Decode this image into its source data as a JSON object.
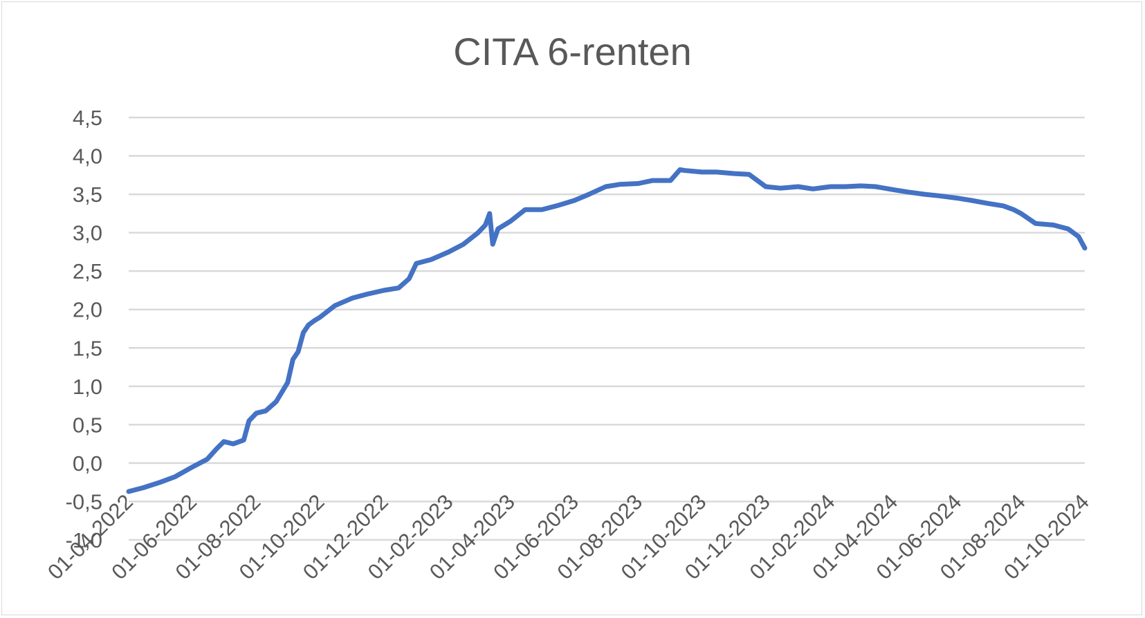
{
  "chart_data": {
    "type": "line",
    "title": "CITA 6-renten",
    "xlabel": "",
    "ylabel": "",
    "ylim": [
      -1.0,
      4.5
    ],
    "ytick_labels": [
      "-1,0",
      "-0,5",
      "0,0",
      "0,5",
      "1,0",
      "1,5",
      "2,0",
      "2,5",
      "3,0",
      "3,5",
      "4,0",
      "4,5"
    ],
    "xlim": [
      "2022-04-01",
      "2024-10-01"
    ],
    "xtick_labels": [
      "01-04-2022",
      "01-06-2022",
      "01-08-2022",
      "01-10-2022",
      "01-12-2022",
      "01-02-2023",
      "01-04-2023",
      "01-06-2023",
      "01-08-2023",
      "01-10-2023",
      "01-12-2023",
      "01-02-2024",
      "01-04-2024",
      "01-06-2024",
      "01-08-2024",
      "01-10-2024"
    ],
    "grid": true,
    "line_color": "#4472c4",
    "series": [
      {
        "x": [
          "2022-04-01",
          "2022-04-15",
          "2022-05-01",
          "2022-05-15",
          "2022-06-01",
          "2022-06-15",
          "2022-06-25",
          "2022-07-01",
          "2022-07-10",
          "2022-07-20",
          "2022-07-25",
          "2022-08-01",
          "2022-08-10",
          "2022-08-20",
          "2022-08-31",
          "2022-09-05",
          "2022-09-10",
          "2022-09-15",
          "2022-09-20",
          "2022-09-25",
          "2022-10-01",
          "2022-10-15",
          "2022-11-01",
          "2022-11-15",
          "2022-12-01",
          "2022-12-15",
          "2022-12-25",
          "2023-01-01",
          "2023-01-15",
          "2023-02-01",
          "2023-02-15",
          "2023-03-01",
          "2023-03-08",
          "2023-03-12",
          "2023-03-15",
          "2023-03-20",
          "2023-04-01",
          "2023-04-15",
          "2023-05-01",
          "2023-05-15",
          "2023-06-01",
          "2023-06-15",
          "2023-07-01",
          "2023-07-15",
          "2023-08-01",
          "2023-08-15",
          "2023-09-01",
          "2023-09-10",
          "2023-09-15",
          "2023-10-01",
          "2023-10-15",
          "2023-11-01",
          "2023-11-15",
          "2023-12-01",
          "2023-12-15",
          "2024-01-01",
          "2024-01-15",
          "2024-02-01",
          "2024-02-15",
          "2024-03-01",
          "2024-03-15",
          "2024-04-01",
          "2024-04-15",
          "2024-05-01",
          "2024-05-15",
          "2024-06-01",
          "2024-06-15",
          "2024-07-01",
          "2024-07-15",
          "2024-07-25",
          "2024-08-01",
          "2024-08-15",
          "2024-09-01",
          "2024-09-15",
          "2024-09-25",
          "2024-10-01"
        ],
        "y": [
          -0.37,
          -0.32,
          -0.25,
          -0.18,
          -0.05,
          0.05,
          0.2,
          0.28,
          0.25,
          0.3,
          0.55,
          0.65,
          0.68,
          0.8,
          1.05,
          1.35,
          1.45,
          1.7,
          1.8,
          1.85,
          1.9,
          2.05,
          2.15,
          2.2,
          2.25,
          2.28,
          2.4,
          2.6,
          2.65,
          2.75,
          2.85,
          3.0,
          3.1,
          3.25,
          2.85,
          3.05,
          3.15,
          3.3,
          3.3,
          3.35,
          3.42,
          3.5,
          3.6,
          3.63,
          3.64,
          3.68,
          3.68,
          3.82,
          3.81,
          3.79,
          3.79,
          3.77,
          3.76,
          3.6,
          3.58,
          3.6,
          3.57,
          3.6,
          3.6,
          3.61,
          3.6,
          3.56,
          3.53,
          3.5,
          3.48,
          3.45,
          3.42,
          3.38,
          3.35,
          3.3,
          3.25,
          3.12,
          3.1,
          3.05,
          2.95,
          2.8
        ]
      }
    ]
  }
}
